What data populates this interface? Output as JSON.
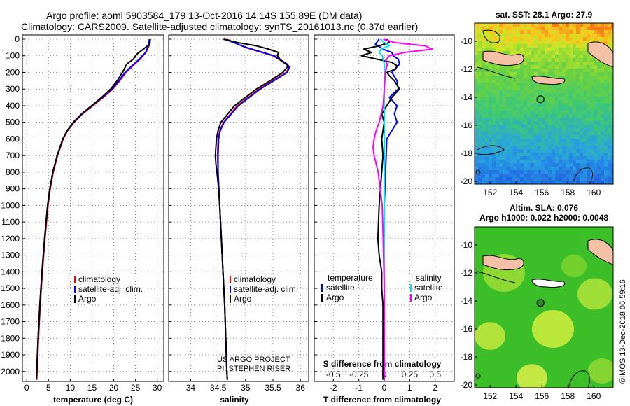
{
  "header": {
    "line1": "Argo profile: aoml 5903584_179 13-Oct-2016 14.14S 155.89E (DM data)",
    "line2": "Climatology: CARS2009. Satellite-adjusted climatology: synTS_20161013.nc (0.37d earlier)"
  },
  "colors": {
    "climatology": "#ff0000",
    "satellite": "#0000ff",
    "argo": "#000000",
    "sat_salinity": "#00e5ee",
    "argo_salinity": "#ff00ff"
  },
  "depth_axis": {
    "ticks": [
      "0",
      "100",
      "200",
      "300",
      "400",
      "500",
      "600",
      "700",
      "800",
      "900",
      "1000",
      "1100",
      "1200",
      "1300",
      "1400",
      "1500",
      "1600",
      "1700",
      "1800",
      "1900",
      "2000"
    ],
    "ylim": [
      0,
      2060
    ]
  },
  "chart_data": [
    {
      "type": "line",
      "id": "temperature",
      "xlabel": "temperature (deg C)",
      "xlim": [
        -1,
        31.5
      ],
      "ylim": [
        0,
        2060
      ],
      "xticks": [
        "0",
        "5",
        "10",
        "15",
        "20",
        "25",
        "30"
      ],
      "legend": [
        "climatology",
        "satellite-adj. clim.",
        "Argo"
      ],
      "series": [
        {
          "name": "climatology",
          "depth": [
            0,
            40,
            80,
            120,
            160,
            200,
            250,
            300,
            350,
            400,
            450,
            500,
            550,
            600,
            700,
            800,
            900,
            1000,
            1200,
            1400,
            1600,
            1800,
            2000,
            2050
          ],
          "values": [
            28.3,
            28.1,
            27.4,
            26.1,
            24.4,
            22.8,
            21.4,
            19.8,
            17.6,
            15.2,
            12.8,
            10.9,
            9.4,
            8.4,
            7.1,
            6.1,
            5.4,
            4.9,
            4.2,
            3.6,
            3.1,
            2.7,
            2.4,
            2.3
          ]
        },
        {
          "name": "satellite-adj. clim.",
          "depth": [
            0,
            40,
            80,
            120,
            160,
            200,
            250,
            300,
            350,
            400,
            450,
            500,
            550,
            600,
            700,
            800,
            900,
            1000,
            1200,
            1400,
            1600,
            1800,
            2000,
            2050
          ],
          "values": [
            28.2,
            28.0,
            27.3,
            25.9,
            24.2,
            22.6,
            21.2,
            19.6,
            17.4,
            15.0,
            12.7,
            10.8,
            9.3,
            8.3,
            7.0,
            6.0,
            5.3,
            4.8,
            4.1,
            3.5,
            3.0,
            2.6,
            2.3,
            2.2
          ]
        },
        {
          "name": "Argo",
          "depth": [
            0,
            30,
            60,
            90,
            120,
            150,
            200,
            250,
            300,
            350,
            400,
            450,
            500,
            550,
            600,
            700,
            800,
            900,
            1000,
            1200,
            1400,
            1600,
            1800,
            2000,
            2050
          ],
          "values": [
            28.4,
            28.3,
            26.8,
            25.3,
            24.5,
            23.0,
            22.0,
            20.8,
            19.3,
            17.2,
            14.9,
            12.6,
            10.7,
            9.3,
            8.3,
            7.0,
            6.0,
            5.3,
            4.8,
            4.1,
            3.5,
            3.0,
            2.6,
            2.3,
            2.2
          ]
        }
      ]
    },
    {
      "type": "line",
      "id": "salinity",
      "xlabel": "salinity",
      "xlim": [
        33.6,
        36.15
      ],
      "ylim": [
        0,
        2060
      ],
      "xticks": [
        "34",
        "34.5",
        "35",
        "35.5",
        "36"
      ],
      "legend": [
        "climatology",
        "satellite-adj. clim.",
        "Argo"
      ],
      "credit": [
        "US ARGO PROJECT",
        "PI: STEPHEN RISER"
      ],
      "series": [
        {
          "name": "climatology",
          "depth": [
            0,
            50,
            100,
            150,
            170,
            200,
            250,
            300,
            400,
            500,
            550,
            600,
            700,
            800,
            1000,
            1200,
            1400,
            1600,
            1800,
            2000,
            2050
          ],
          "values": [
            34.66,
            35.0,
            35.5,
            35.75,
            35.79,
            35.74,
            35.5,
            35.25,
            34.85,
            34.6,
            34.53,
            34.5,
            34.49,
            34.5,
            34.53,
            34.56,
            34.59,
            34.62,
            34.64,
            34.66,
            34.67
          ]
        },
        {
          "name": "satellite-adj. clim.",
          "depth": [
            0,
            50,
            100,
            150,
            170,
            200,
            250,
            300,
            400,
            500,
            550,
            600,
            700,
            800,
            1000,
            1200,
            1400,
            1600,
            1800,
            2000,
            2050
          ],
          "values": [
            34.62,
            35.02,
            35.52,
            35.76,
            35.8,
            35.76,
            35.52,
            35.27,
            34.87,
            34.61,
            34.54,
            34.51,
            34.5,
            34.5,
            34.53,
            34.56,
            34.59,
            34.62,
            34.64,
            34.66,
            34.67
          ]
        },
        {
          "name": "Argo",
          "depth": [
            0,
            20,
            40,
            60,
            80,
            100,
            130,
            160,
            200,
            250,
            300,
            400,
            500,
            550,
            600,
            650,
            700,
            750,
            800,
            900,
            1000,
            1200,
            1400,
            1600,
            1800,
            2000,
            2050
          ],
          "values": [
            34.6,
            34.85,
            35.2,
            35.42,
            35.6,
            35.58,
            35.65,
            35.78,
            35.68,
            35.45,
            35.2,
            34.8,
            34.55,
            34.5,
            34.47,
            34.46,
            34.45,
            34.46,
            34.48,
            34.51,
            34.53,
            34.56,
            34.59,
            34.62,
            34.64,
            34.66,
            34.67
          ]
        }
      ]
    },
    {
      "type": "line",
      "id": "differences",
      "xlabel": "T difference from climatology",
      "x2label": "S difference from climatology",
      "xlim": [
        -2.75,
        2.75
      ],
      "ylim": [
        0,
        2060
      ],
      "xticks": [
        "-2",
        "-1",
        "0",
        "1",
        "2"
      ],
      "x2ticks": [
        "-0.5",
        "-0.25",
        "0",
        "0.25",
        "0.5"
      ],
      "x2lim": [
        -0.6875,
        0.6875
      ],
      "legend_titles": [
        "temperature",
        "salinity"
      ],
      "legend": [
        "satellite",
        "Argo",
        "satellite",
        "Argo"
      ],
      "series": [
        {
          "name": "T satellite",
          "axis": "T",
          "depth": [
            0,
            30,
            60,
            80,
            100,
            120,
            150,
            200,
            250,
            300,
            350,
            400,
            450,
            500,
            600,
            800,
            1000,
            1500,
            2050
          ],
          "values": [
            -0.2,
            -0.35,
            -0.05,
            0.3,
            0.35,
            0.55,
            0.6,
            0.3,
            0.5,
            0.55,
            0.2,
            0.5,
            0.4,
            0.5,
            0.1,
            0.05,
            0.0,
            0.0,
            0.0
          ]
        },
        {
          "name": "T Argo",
          "axis": "T",
          "depth": [
            0,
            20,
            40,
            60,
            80,
            100,
            120,
            140,
            160,
            180,
            200,
            220,
            250,
            300,
            350,
            400,
            450,
            500,
            550,
            600,
            700,
            800,
            1000,
            1200,
            1300,
            1400,
            1500,
            1600,
            1800,
            1900,
            2050
          ],
          "values": [
            0.1,
            0.2,
            -0.2,
            -0.8,
            -0.5,
            -0.9,
            -0.3,
            0.3,
            0.5,
            0.45,
            0.1,
            0.2,
            0.4,
            0.6,
            0.3,
            0.1,
            -0.1,
            0.0,
            -0.05,
            -0.1,
            -0.05,
            -0.1,
            -0.2,
            -0.25,
            -0.2,
            -0.1,
            -0.1,
            -0.05,
            -0.05,
            -0.05,
            -0.05
          ]
        },
        {
          "name": "S satellite",
          "axis": "S",
          "depth": [
            0,
            20,
            40,
            60,
            80,
            100,
            150,
            200,
            300,
            400,
            500,
            600,
            800,
            1000,
            1500,
            2050
          ],
          "values": [
            -0.04,
            0.0,
            0.05,
            -0.03,
            -0.05,
            -0.02,
            0.0,
            0.01,
            0.0,
            0.0,
            0.0,
            0.0,
            0.0,
            0.0,
            0.0,
            0.0
          ]
        },
        {
          "name": "S Argo",
          "axis": "S",
          "depth": [
            0,
            20,
            40,
            60,
            80,
            100,
            130,
            150,
            200,
            300,
            400,
            500,
            550,
            600,
            650,
            700,
            800,
            900,
            1000,
            1200,
            1500,
            2050
          ],
          "values": [
            -0.01,
            0.1,
            0.4,
            0.47,
            0.2,
            0.05,
            0.01,
            0.03,
            0.01,
            0.0,
            -0.01,
            -0.05,
            -0.08,
            -0.1,
            -0.11,
            -0.1,
            -0.06,
            -0.04,
            -0.02,
            -0.01,
            0.0,
            0.0
          ]
        }
      ]
    },
    {
      "type": "heatmap",
      "id": "sst-map",
      "title": "sat. SST: 28.1 Argo: 27.9",
      "xticks": [
        "152",
        "154",
        "156",
        "158",
        "160"
      ],
      "yticks": [
        "-10",
        "-12",
        "-14",
        "-16",
        "-18",
        "-20"
      ],
      "xlim": [
        150.8,
        161.5
      ],
      "ylim": [
        -20.2,
        -8.7
      ],
      "marker": {
        "lon": 155.89,
        "lat": -14.14
      }
    },
    {
      "type": "heatmap",
      "id": "sla-map",
      "title": "Altim. SLA: 0.076",
      "subtitle": "Argo h1000: 0.022 h2000: 0.0048",
      "xticks": [
        "152",
        "154",
        "156",
        "158",
        "160"
      ],
      "yticks": [
        "-10",
        "-12",
        "-14",
        "-16",
        "-18",
        "-20"
      ],
      "xlim": [
        150.8,
        161.5
      ],
      "ylim": [
        -20.2,
        -8.7
      ],
      "marker": {
        "lon": 155.89,
        "lat": -14.14
      }
    }
  ],
  "footer": {
    "stamp": "©IMOS 13-Dec-2018 06:59:16"
  }
}
